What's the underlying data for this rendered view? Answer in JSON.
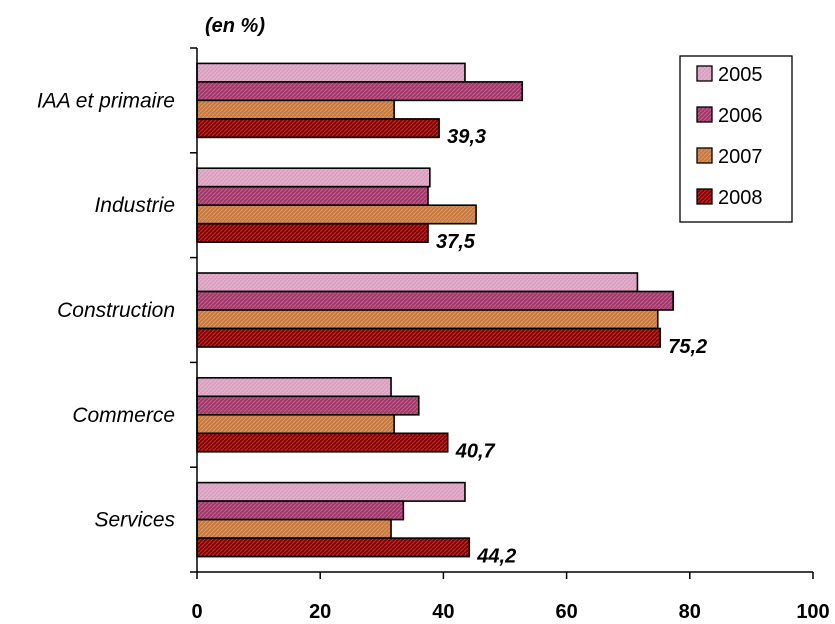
{
  "chart_data": {
    "type": "bar",
    "orientation": "horizontal",
    "unit_label": "(en %)",
    "categories": [
      "IAA et primaire",
      "Industrie",
      "Construction",
      "Commerce",
      "Services"
    ],
    "series": [
      {
        "name": "2005",
        "color": "#d9a0bf",
        "values": [
          43.5,
          37.8,
          71.5,
          31.5,
          43.5
        ]
      },
      {
        "name": "2006",
        "color": "#a3386b",
        "values": [
          52.8,
          37.5,
          77.3,
          36.0,
          33.5
        ]
      },
      {
        "name": "2007",
        "color": "#c87a40",
        "values": [
          32.0,
          45.3,
          74.8,
          32.0,
          31.5
        ]
      },
      {
        "name": "2008",
        "color": "#8b0000",
        "values": [
          39.3,
          37.5,
          75.2,
          40.7,
          44.2
        ]
      }
    ],
    "data_labels": [
      "39,3",
      "37,5",
      "75,2",
      "40,7",
      "44,2"
    ],
    "x_ticks": [
      0,
      20,
      40,
      60,
      80,
      100
    ],
    "xlim": [
      0,
      100
    ],
    "grid": false,
    "legend_position": "top-right"
  }
}
